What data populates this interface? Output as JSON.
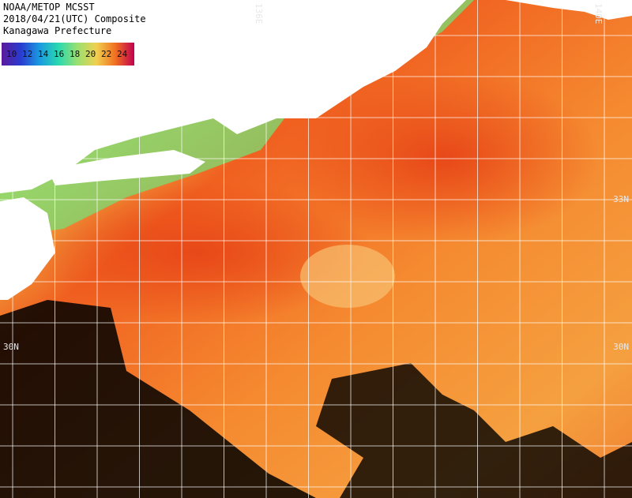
{
  "header": {
    "lines": [
      "NOAA/METOP MCSST",
      "2018/04/21(UTC) Composite",
      "Kanagawa Prefecture"
    ]
  },
  "legend": {
    "items": [
      {
        "label": "10",
        "color": "#5a1a9a"
      },
      {
        "label": "12",
        "color": "#2a3ad0"
      },
      {
        "label": "14",
        "color": "#1a9ae0"
      },
      {
        "label": "16",
        "color": "#2ad8b0"
      },
      {
        "label": "18",
        "color": "#9ae070"
      },
      {
        "label": "20",
        "color": "#f0d050"
      },
      {
        "label": "22",
        "color": "#f07020"
      },
      {
        "label": "24",
        "color": "#c00050"
      }
    ]
  },
  "grid_labels": {
    "top": [
      "136E",
      "140E"
    ],
    "right": [
      "33N",
      "30N"
    ],
    "left": [
      "30N"
    ]
  }
}
